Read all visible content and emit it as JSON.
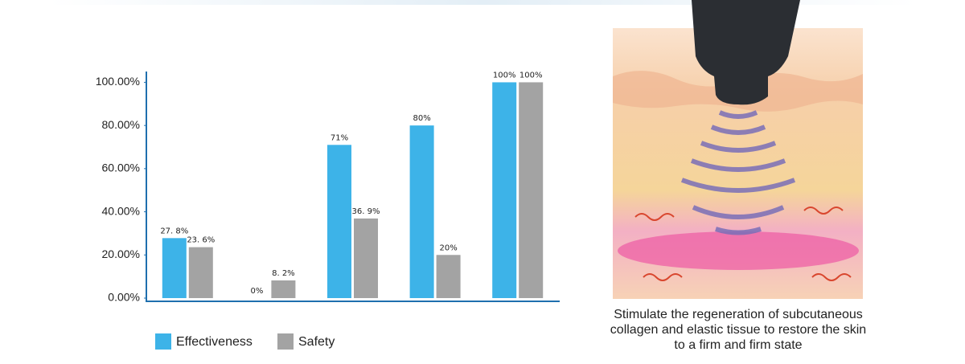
{
  "chart_data": {
    "type": "bar",
    "categories": [
      null,
      null,
      null,
      null,
      null
    ],
    "series": [
      {
        "name": "Effectiveness",
        "color": "#3db3e8",
        "values": [
          27.8,
          0,
          71,
          80,
          100
        ],
        "value_labels": [
          "27. 8%",
          "0%",
          "71%",
          "80%",
          "100%"
        ]
      },
      {
        "name": "Safety",
        "color": "#a3a3a3",
        "values": [
          23.6,
          8.2,
          36.9,
          20,
          100
        ],
        "value_labels": [
          "23. 6%",
          "8. 2%",
          "36. 9%",
          "20%",
          "100%"
        ]
      }
    ],
    "ylim": [
      0,
      105
    ],
    "yticks": [
      {
        "value": 0,
        "label": "0.00%"
      },
      {
        "value": 20,
        "label": "20.00%"
      },
      {
        "value": 40,
        "label": "40.00%"
      },
      {
        "value": 60,
        "label": "60.00%"
      },
      {
        "value": 80,
        "label": "80.00%"
      },
      {
        "value": 100,
        "label": "100.00%"
      }
    ],
    "legend": "bottom-left",
    "caption": [
      "Stimulate the regeneration of subcutaneous",
      "collagen and elastic tissue to restore the skin",
      "to a firm and firm state"
    ]
  }
}
